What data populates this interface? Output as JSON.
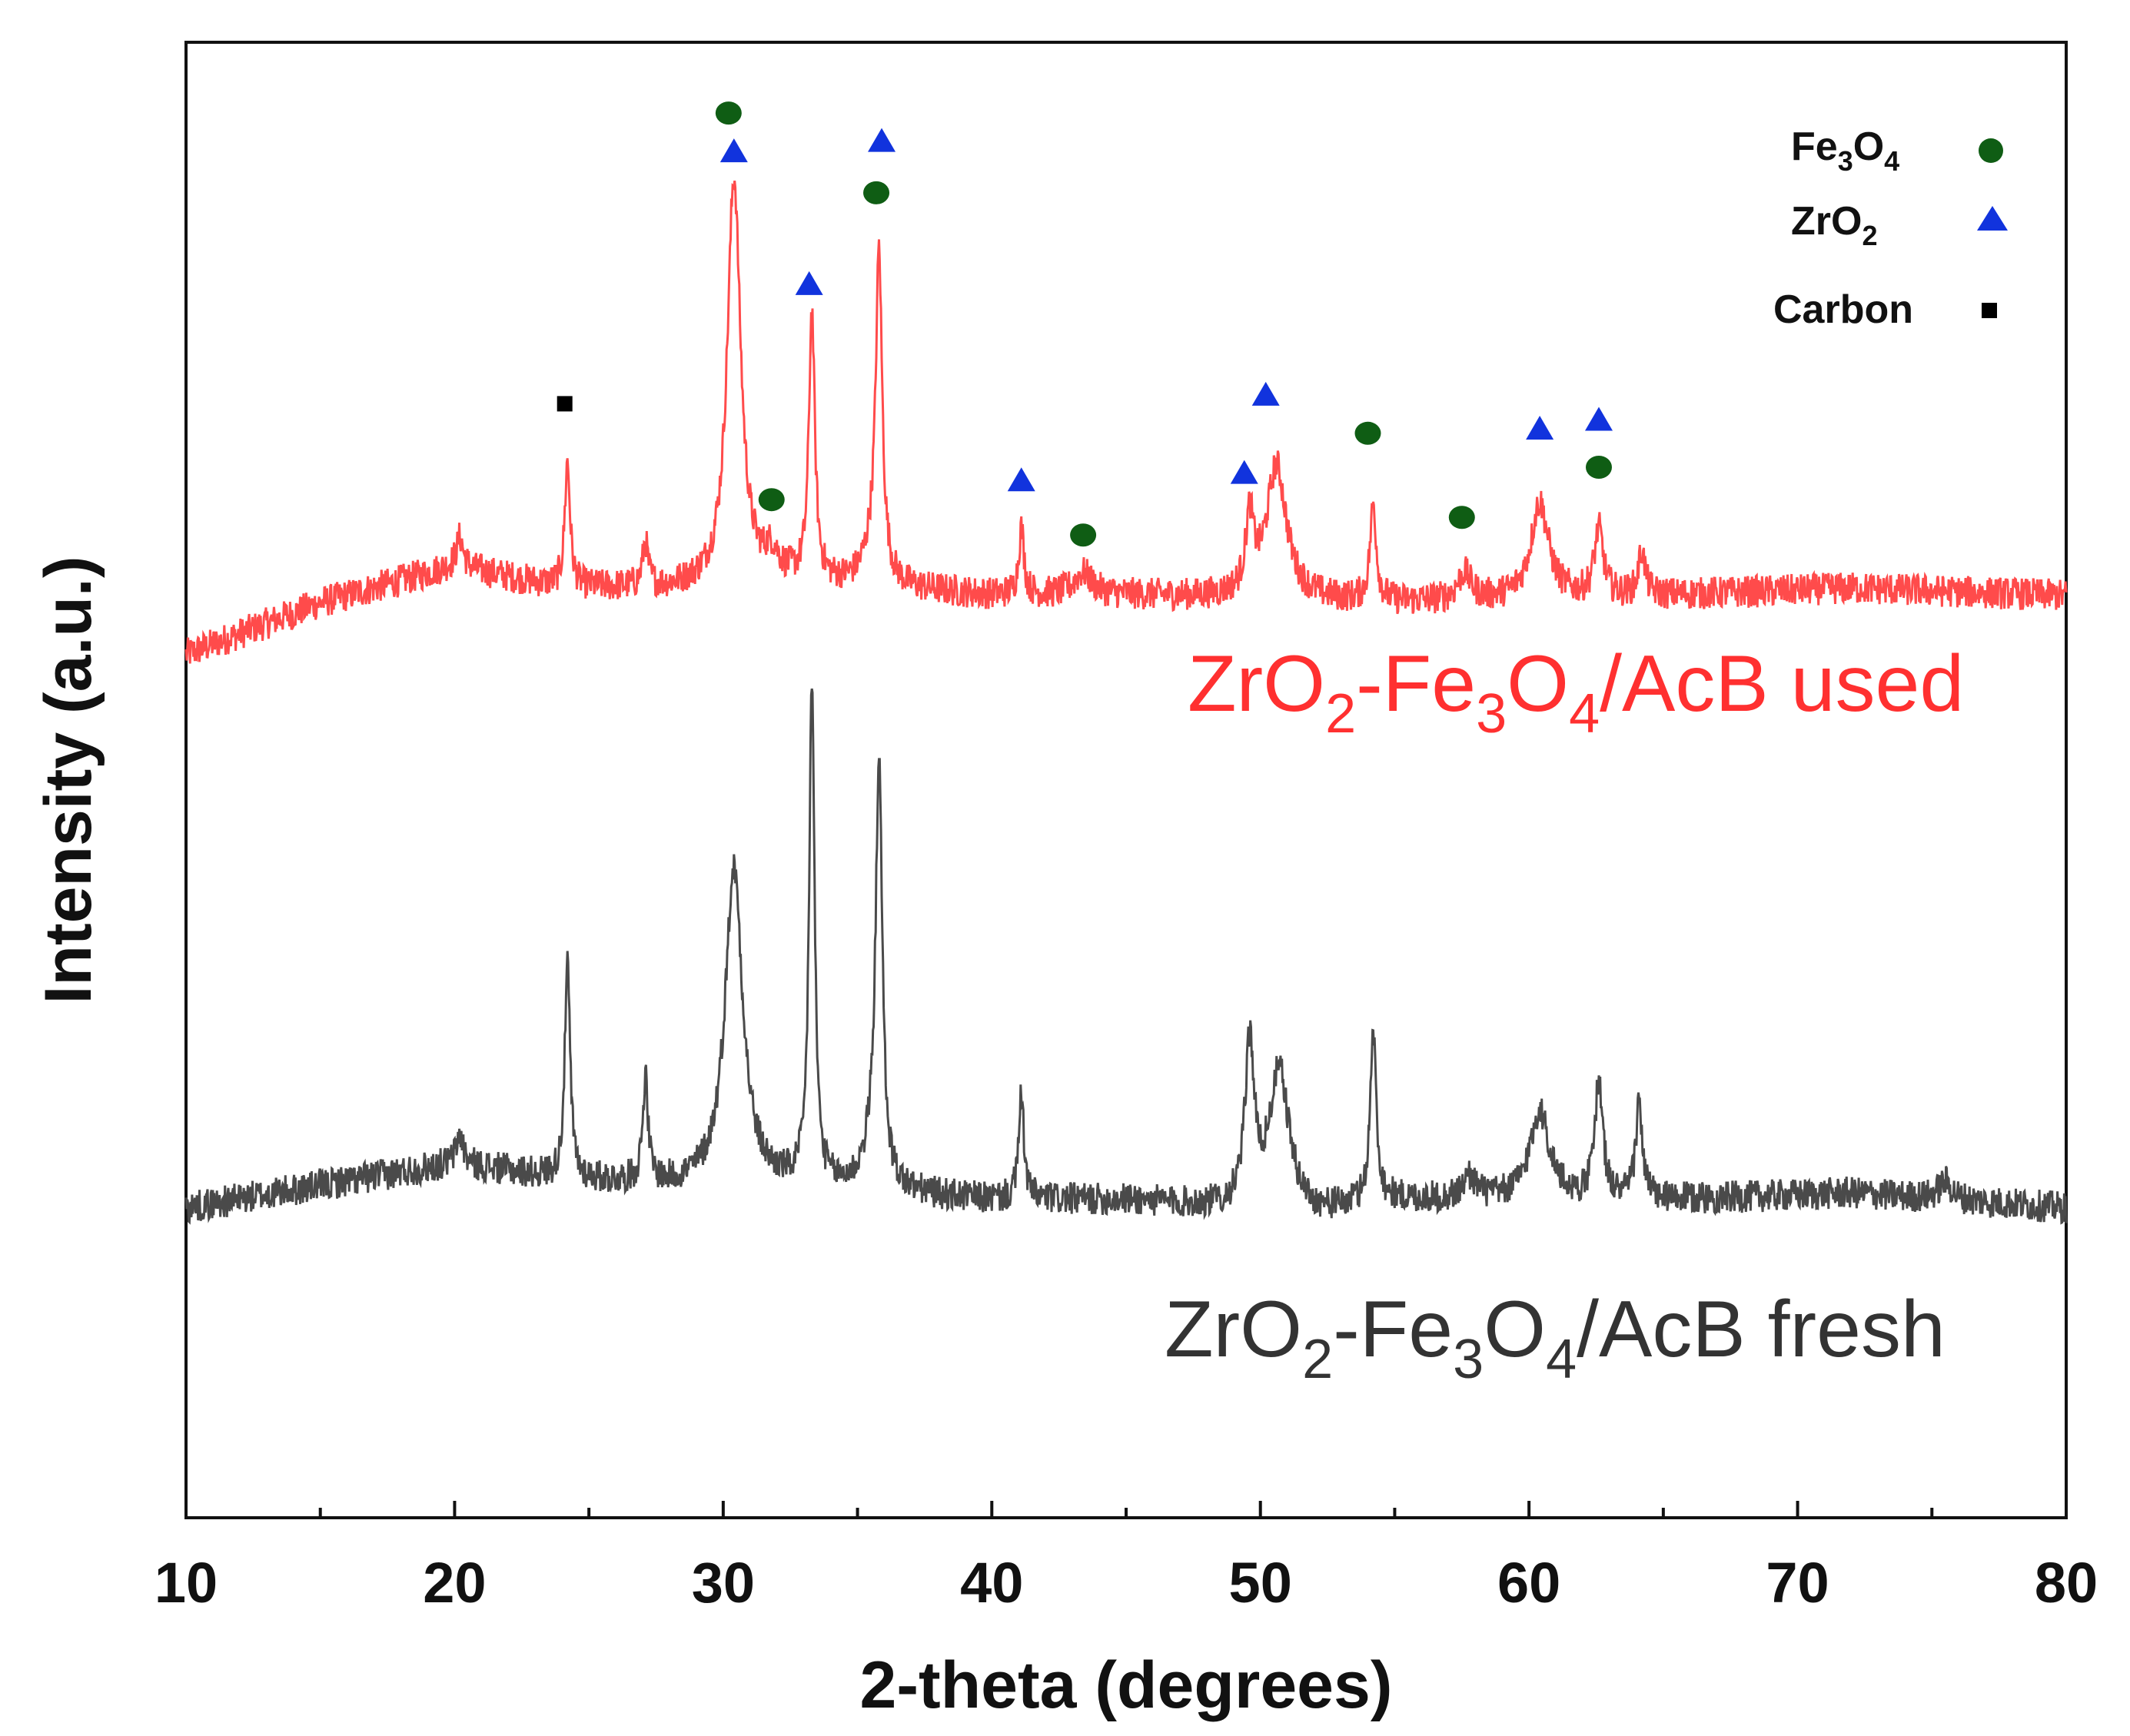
{
  "chart_data": {
    "type": "line",
    "title": "",
    "xlabel": "2-theta (degrees)",
    "ylabel": "Intensity (a.u.)",
    "xlim": [
      10,
      80
    ],
    "ylim": [
      0,
      100
    ],
    "xticks": [
      10,
      20,
      30,
      40,
      50,
      60,
      70,
      80
    ],
    "x_tick_labels": [
      "10",
      "20",
      "30",
      "40",
      "50",
      "60",
      "70",
      "80"
    ],
    "series": [
      {
        "name": "ZrO2-Fe3O4/AcB used",
        "label_parts": {
          "a": "ZrO",
          "b": "2",
          "c": "-Fe",
          "d": "3",
          "e": "O",
          "f": "4",
          "g": "/AcB used"
        },
        "color": "#ff4b4b",
        "baseline": [
          [
            10,
            58.5
          ],
          [
            15,
            62.0
          ],
          [
            20,
            64.5
          ],
          [
            24,
            63.0
          ],
          [
            28,
            63.0
          ],
          [
            32,
            63.5
          ],
          [
            40,
            62.5
          ],
          [
            45,
            62.5
          ],
          [
            55,
            62.0
          ],
          [
            65,
            62.5
          ],
          [
            72,
            63.0
          ],
          [
            80,
            62.5
          ]
        ],
        "peaks": [
          {
            "x": 20.2,
            "h": 2.0,
            "w": 0.15
          },
          {
            "x": 24.2,
            "h": 8.5,
            "w": 0.12
          },
          {
            "x": 27.1,
            "h": 3.0,
            "w": 0.12
          },
          {
            "x": 30.4,
            "h": 27.5,
            "w": 0.3
          },
          {
            "x": 31.8,
            "h": 1.5,
            "w": 0.3
          },
          {
            "x": 33.3,
            "h": 18.2,
            "w": 0.13
          },
          {
            "x": 35.6,
            "h": 2.5,
            "w": 0.4
          },
          {
            "x": 35.8,
            "h": 21.0,
            "w": 0.14
          },
          {
            "x": 41.1,
            "h": 4.5,
            "w": 0.12
          },
          {
            "x": 43.4,
            "h": 1.5,
            "w": 0.4
          },
          {
            "x": 49.6,
            "h": 5.0,
            "w": 0.18
          },
          {
            "x": 50.6,
            "h": 9.0,
            "w": 0.45
          },
          {
            "x": 54.2,
            "h": 6.5,
            "w": 0.14
          },
          {
            "x": 57.6,
            "h": 1.8,
            "w": 0.3
          },
          {
            "x": 60.4,
            "h": 6.5,
            "w": 0.4
          },
          {
            "x": 62.6,
            "h": 4.5,
            "w": 0.2
          },
          {
            "x": 64.2,
            "h": 3.0,
            "w": 0.15
          }
        ]
      },
      {
        "name": "ZrO2-Fe3O4/AcB fresh",
        "label_parts": {
          "a": "ZrO",
          "b": "2",
          "c": "-Fe",
          "d": "3",
          "e": "O",
          "f": "4",
          "g": "/AcB fresh"
        },
        "color": "#4a4a4a",
        "baseline": [
          [
            10,
            21.0
          ],
          [
            15,
            22.5
          ],
          [
            20,
            24.0
          ],
          [
            24,
            23.0
          ],
          [
            28,
            22.5
          ],
          [
            32,
            22.5
          ],
          [
            40,
            21.5
          ],
          [
            45,
            21.5
          ],
          [
            52,
            20.5
          ],
          [
            55,
            21.5
          ],
          [
            65,
            21.5
          ],
          [
            72,
            22.0
          ],
          [
            80,
            21.0
          ]
        ],
        "peaks": [
          {
            "x": 20.2,
            "h": 2.0,
            "w": 0.15
          },
          {
            "x": 24.2,
            "h": 14.5,
            "w": 0.12
          },
          {
            "x": 27.1,
            "h": 7.0,
            "w": 0.12
          },
          {
            "x": 30.4,
            "h": 21.5,
            "w": 0.4
          },
          {
            "x": 33.3,
            "h": 34.0,
            "w": 0.12
          },
          {
            "x": 35.6,
            "h": 3.0,
            "w": 0.4
          },
          {
            "x": 35.8,
            "h": 27.5,
            "w": 0.14
          },
          {
            "x": 41.1,
            "h": 7.0,
            "w": 0.12
          },
          {
            "x": 49.6,
            "h": 11.0,
            "w": 0.2
          },
          {
            "x": 50.7,
            "h": 9.5,
            "w": 0.45
          },
          {
            "x": 54.2,
            "h": 11.5,
            "w": 0.14
          },
          {
            "x": 57.8,
            "h": 1.5,
            "w": 0.3
          },
          {
            "x": 60.4,
            "h": 6.0,
            "w": 0.45
          },
          {
            "x": 62.6,
            "h": 8.0,
            "w": 0.18
          },
          {
            "x": 64.1,
            "h": 6.5,
            "w": 0.15
          },
          {
            "x": 75.5,
            "h": 1.2,
            "w": 0.3
          }
        ]
      }
    ],
    "markers": [
      {
        "phase": "Fe3O4",
        "x": 30.2,
        "y": 95.2
      },
      {
        "phase": "ZrO2",
        "x": 30.4,
        "y": 92.6
      },
      {
        "phase": "ZrO2",
        "x": 35.9,
        "y": 93.3
      },
      {
        "phase": "Fe3O4",
        "x": 35.7,
        "y": 89.8
      },
      {
        "phase": "ZrO2",
        "x": 33.2,
        "y": 83.6
      },
      {
        "phase": "Carbon",
        "x": 24.1,
        "y": 75.5
      },
      {
        "phase": "Fe3O4",
        "x": 31.8,
        "y": 69.0
      },
      {
        "phase": "ZrO2",
        "x": 41.1,
        "y": 70.3
      },
      {
        "phase": "Fe3O4",
        "x": 43.4,
        "y": 66.6
      },
      {
        "phase": "ZrO2",
        "x": 49.4,
        "y": 70.8
      },
      {
        "phase": "ZrO2",
        "x": 50.2,
        "y": 76.1
      },
      {
        "phase": "Fe3O4",
        "x": 54.0,
        "y": 73.5
      },
      {
        "phase": "Fe3O4",
        "x": 57.5,
        "y": 67.8
      },
      {
        "phase": "ZrO2",
        "x": 60.4,
        "y": 73.8
      },
      {
        "phase": "ZrO2",
        "x": 62.6,
        "y": 74.4
      },
      {
        "phase": "Fe3O4",
        "x": 62.6,
        "y": 71.2
      }
    ],
    "legend": {
      "position": "top-right",
      "entries": [
        {
          "phase": "Fe3O4",
          "parts": {
            "a": "Fe",
            "b": "3",
            "c": "O",
            "d": "4"
          },
          "marker": "circle",
          "color": "#0f5d14"
        },
        {
          "phase": "ZrO2",
          "parts": {
            "a": "ZrO",
            "b": "2"
          },
          "marker": "triangle",
          "color": "#1133dd"
        },
        {
          "phase": "Carbon",
          "parts": {
            "a": "Carbon"
          },
          "marker": "square",
          "color": "#000000"
        }
      ]
    }
  }
}
